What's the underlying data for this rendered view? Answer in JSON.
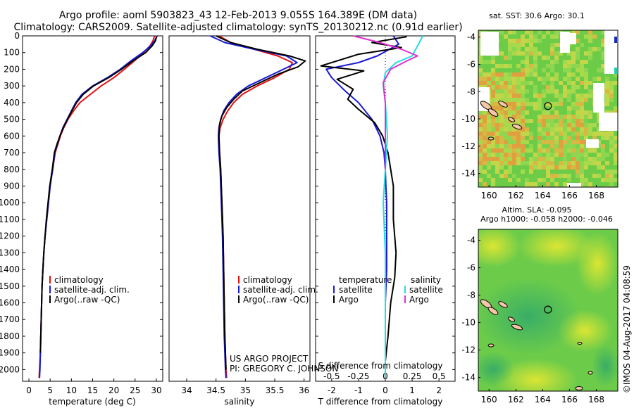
{
  "title_line1": "Argo profile: aoml 5903823_43 12-Feb-2013 9.055S 164.389E (DM data)",
  "title_line2": "Climatology: CARS2009. Satellite-adjusted climatology: synTS_20130212.nc (0.91d earlier)",
  "project_credit": "US ARGO PROJECT",
  "pi_credit": "PI: GREGORY C. JOHNSON",
  "imos_credit": "©IMOS 04-Aug-2017 04:08:59",
  "colors": {
    "climatology": "#e01010",
    "satellite": "#1a1ad6",
    "argo": "#000000",
    "satellite_salinity": "#22dde0",
    "argo_salinity": "#e030d0"
  },
  "chart_data": [
    {
      "type": "line",
      "panel": "temperature",
      "xlabel": "temperature (deg C)",
      "ylabel": "",
      "xlim": [
        -1.5,
        31.5
      ],
      "ylim": [
        2070,
        0
      ],
      "xticks": [
        0,
        5,
        10,
        15,
        20,
        25,
        30
      ],
      "yticks": [
        0,
        100,
        200,
        300,
        400,
        500,
        600,
        700,
        800,
        900,
        1000,
        1100,
        1200,
        1300,
        1400,
        1500,
        1600,
        1700,
        1800,
        1900,
        2000
      ],
      "legend": [
        "climatology",
        "satellite-adj. clim.",
        "Argo(..raw -QC)"
      ],
      "legend_position": "lower-center",
      "series": [
        {
          "name": "climatology",
          "color_key": "climatology",
          "x": [
            29.6,
            29.2,
            28.5,
            27.0,
            24.8,
            22.5,
            20.0,
            17.0,
            14.5,
            12.0,
            10.5,
            9.2,
            8.2,
            7.4,
            6.8,
            6.2,
            5.6,
            5.0,
            4.6,
            4.2,
            3.8,
            3.5,
            3.3,
            3.1,
            3.0,
            2.9,
            2.8,
            2.7,
            2.5,
            2.4
          ],
          "y": [
            0,
            30,
            60,
            100,
            150,
            200,
            250,
            300,
            350,
            400,
            450,
            500,
            550,
            600,
            650,
            700,
            800,
            900,
            1000,
            1100,
            1200,
            1300,
            1400,
            1500,
            1600,
            1700,
            1800,
            1900,
            2000,
            2050
          ]
        },
        {
          "name": "satellite-adj. clim.",
          "color_key": "satellite",
          "x": [
            30.2,
            29.6,
            28.6,
            26.8,
            24.0,
            21.5,
            18.5,
            15.0,
            12.5,
            11.0,
            10.0,
            9.0,
            8.0,
            7.3,
            6.7,
            6.1,
            5.6,
            5.0,
            4.6,
            4.2,
            3.8,
            3.5,
            3.3,
            3.1,
            3.0,
            2.9,
            2.8,
            2.7,
            2.6,
            2.5
          ],
          "y": [
            0,
            30,
            60,
            100,
            150,
            200,
            250,
            300,
            350,
            400,
            450,
            500,
            550,
            600,
            650,
            700,
            800,
            900,
            1000,
            1100,
            1200,
            1300,
            1400,
            1500,
            1600,
            1700,
            1800,
            1900,
            2000,
            2050
          ]
        },
        {
          "name": "Argo(..raw -QC)",
          "color_key": "argo",
          "x": [
            30.0,
            29.8,
            29.0,
            27.5,
            24.5,
            21.8,
            18.8,
            15.2,
            12.8,
            11.2,
            10.1,
            9.1,
            8.1,
            7.3,
            6.6,
            6.0,
            5.5,
            4.9,
            4.5,
            4.1,
            3.8,
            3.5,
            3.3,
            3.1,
            3.0,
            2.9,
            2.8,
            2.7
          ],
          "y": [
            5,
            30,
            60,
            100,
            150,
            200,
            250,
            300,
            350,
            400,
            450,
            500,
            550,
            600,
            650,
            700,
            800,
            900,
            1000,
            1100,
            1200,
            1300,
            1400,
            1500,
            1600,
            1700,
            1800,
            1900
          ]
        }
      ]
    },
    {
      "type": "line",
      "panel": "salinity",
      "xlabel": "salinity",
      "ylabel": "",
      "xlim": [
        33.7,
        36.1
      ],
      "ylim": [
        2070,
        0
      ],
      "xticks": [
        34,
        34.5,
        35,
        35.5,
        36
      ],
      "xtick_labels": [
        "34",
        "34.5",
        "35",
        "35.5",
        "36"
      ],
      "legend": [
        "climatology",
        "satellite-adj. clim.",
        "Argo(..raw -QC)"
      ],
      "legend_position": "lower-center",
      "series": [
        {
          "name": "climatology",
          "color_key": "climatology",
          "x": [
            34.55,
            34.75,
            35.15,
            35.55,
            35.8,
            35.75,
            35.5,
            35.2,
            34.95,
            34.8,
            34.7,
            34.62,
            34.57,
            34.55,
            34.56,
            34.58,
            34.6,
            34.62,
            34.63,
            34.64,
            34.65,
            34.66,
            34.67,
            34.68
          ],
          "y": [
            0,
            40,
            80,
            120,
            160,
            200,
            250,
            300,
            350,
            400,
            450,
            500,
            550,
            600,
            700,
            800,
            1000,
            1200,
            1400,
            1600,
            1800,
            1900,
            2000,
            2050
          ]
        },
        {
          "name": "satellite-adj. clim.",
          "color_key": "satellite",
          "x": [
            34.4,
            34.65,
            35.15,
            35.7,
            35.88,
            35.65,
            35.35,
            35.05,
            34.85,
            34.72,
            34.63,
            34.58,
            34.55,
            34.54,
            34.55,
            34.57,
            34.59,
            34.61,
            34.62,
            34.63,
            34.64,
            34.65,
            34.66,
            34.67
          ],
          "y": [
            0,
            40,
            80,
            120,
            160,
            200,
            250,
            300,
            350,
            400,
            450,
            500,
            550,
            600,
            700,
            800,
            1000,
            1200,
            1400,
            1600,
            1800,
            1900,
            2000,
            2050
          ]
        },
        {
          "name": "Argo(..raw -QC)",
          "color_key": "argo",
          "x": [
            34.5,
            34.75,
            35.2,
            35.75,
            36.02,
            35.9,
            35.55,
            35.25,
            34.95,
            34.8,
            34.68,
            34.6,
            34.56,
            34.55,
            34.56,
            34.58,
            34.6,
            34.62,
            34.63,
            34.64,
            34.65,
            34.66,
            34.67
          ],
          "y": [
            0,
            40,
            80,
            120,
            150,
            185,
            230,
            280,
            330,
            380,
            430,
            480,
            530,
            600,
            700,
            800,
            1000,
            1200,
            1400,
            1600,
            1800,
            1900,
            2000
          ]
        }
      ]
    },
    {
      "type": "line",
      "panel": "difference",
      "xlabel": "T difference from climatology",
      "xlabel_top": "S difference from climatology",
      "xlim": [
        -2.6,
        2.6
      ],
      "ylim": [
        2070,
        0
      ],
      "xticks_T": [
        -2,
        -1,
        0,
        1,
        2
      ],
      "xtick_labels_T": [
        "-2",
        "-1",
        "0",
        "1",
        "2"
      ],
      "xticks_S": [
        -0.5,
        -0.25,
        0,
        0.25,
        0.5
      ],
      "xtick_labels_S": [
        "-0.5",
        "-0.25",
        "0",
        "0.25",
        "0.5"
      ],
      "zero_line": "dotted",
      "legend_titles": [
        "temperature",
        "salinity"
      ],
      "legend": [
        "satellite",
        "Argo",
        "satellite",
        "Argo"
      ],
      "legend_position": "lower-center",
      "series": [
        {
          "name": "satellite",
          "quantity": "temperature",
          "color_key": "satellite",
          "x": [
            0.3,
            0.5,
            -0.3,
            -1.0,
            -2.2,
            -2.0,
            -1.5,
            -1.0,
            -0.5,
            -0.2,
            -0.05,
            0.0,
            0.02,
            0.05,
            0.05,
            0.05,
            0.0,
            0.0,
            0.0,
            0.0
          ],
          "y": [
            0,
            50,
            120,
            160,
            200,
            250,
            330,
            400,
            500,
            600,
            700,
            800,
            900,
            1000,
            1200,
            1400,
            1600,
            1800,
            1950,
            2050
          ]
        },
        {
          "name": "Argo",
          "quantity": "temperature",
          "color_key": "argo",
          "x": [
            0.8,
            -0.5,
            0.6,
            -1.0,
            -2.4,
            -0.8,
            -1.8,
            -1.2,
            -1.4,
            -1.0,
            -0.4,
            -0.1,
            0.1,
            0.2,
            0.3,
            0.3,
            0.4,
            0.35,
            0.2,
            0.1,
            0.0
          ],
          "y": [
            5,
            40,
            70,
            110,
            180,
            210,
            260,
            320,
            380,
            440,
            520,
            600,
            700,
            800,
            900,
            1100,
            1300,
            1450,
            1600,
            1800,
            1950
          ]
        },
        {
          "name": "satellite",
          "quantity": "salinity",
          "color_key": "satellite_salinity",
          "x": [
            0.35,
            0.3,
            0.25,
            0.1,
            0.0,
            -0.02,
            0.0,
            0.02,
            0.0,
            -0.02,
            0.0,
            0.0,
            0.0,
            0.0
          ],
          "y": [
            0,
            60,
            120,
            160,
            220,
            300,
            400,
            600,
            800,
            1000,
            1300,
            1600,
            1900,
            2050
          ]
        },
        {
          "name": "Argo",
          "quantity": "salinity",
          "color_key": "argo_salinity",
          "x": [
            -0.3,
            -0.05,
            0.15,
            0.3,
            0.2,
            0.05,
            -0.02,
            0.0,
            0.0,
            0.0
          ],
          "y": [
            0,
            40,
            80,
            120,
            150,
            200,
            280,
            400,
            600,
            800
          ]
        }
      ]
    },
    {
      "type": "heatmap",
      "panel": "sst_map",
      "title": "sat. SST: 30.6  Argo: 30.1",
      "xlim": [
        159.2,
        169.6
      ],
      "ylim": [
        -15,
        -3.5
      ],
      "xticks": [
        160,
        162,
        164,
        166,
        168
      ],
      "yticks": [
        -4,
        -6,
        -8,
        -10,
        -12,
        -14
      ],
      "marker": {
        "lon": 164.389,
        "lat": -9.055
      }
    },
    {
      "type": "heatmap",
      "panel": "sla_map",
      "title_line1": "Altim. SLA: -0.095",
      "title_line2": "Argo h1000: -0.058 h2000: -0.046",
      "xlim": [
        159.2,
        169.6
      ],
      "ylim": [
        -15,
        -3.2
      ],
      "xticks": [
        160,
        162,
        164,
        166,
        168
      ],
      "yticks": [
        -4,
        -6,
        -8,
        -10,
        -12,
        -14
      ],
      "marker": {
        "lon": 164.389,
        "lat": -9.055
      }
    }
  ]
}
